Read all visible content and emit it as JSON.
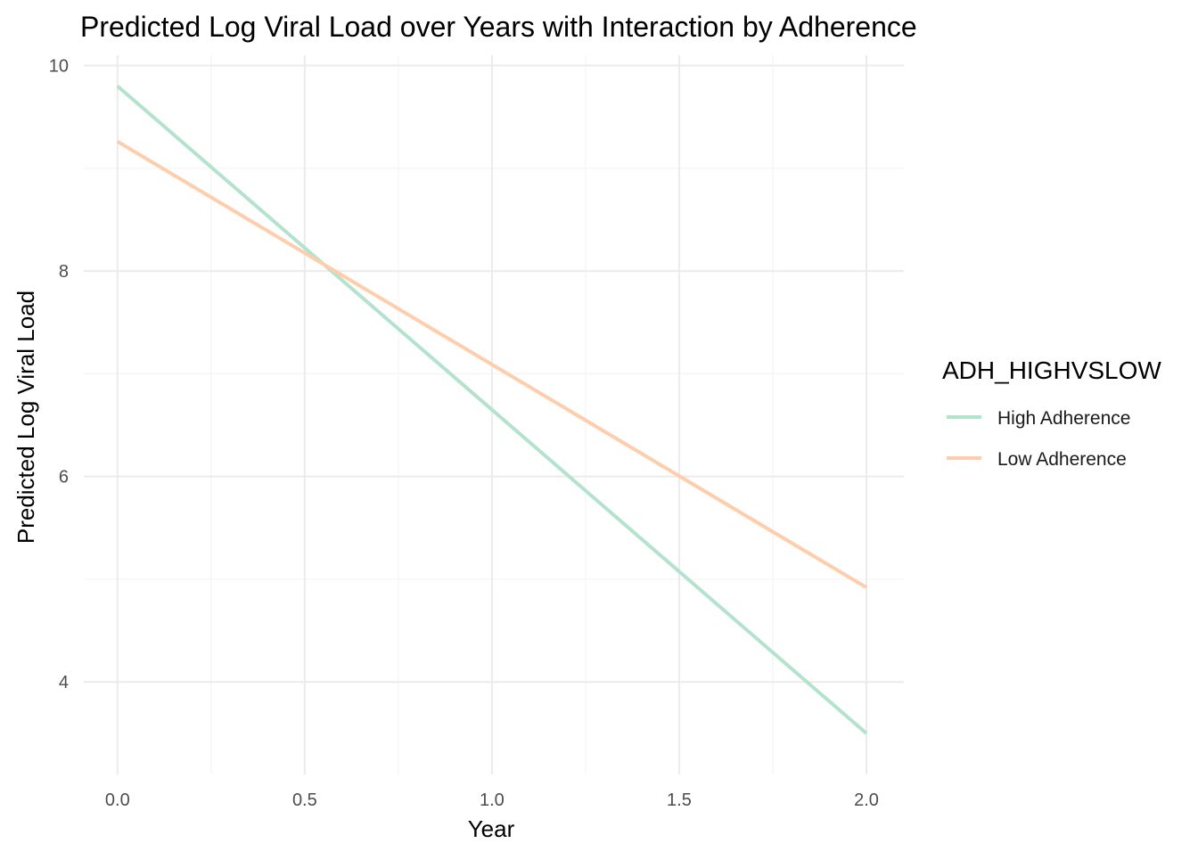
{
  "chart_data": {
    "type": "line",
    "title": "Predicted Log Viral Load over Years with Interaction by Adherence",
    "xlabel": "Year",
    "ylabel": "Predicted Log Viral Load",
    "xlim": [
      -0.09,
      2.1
    ],
    "ylim": [
      3.1,
      10.1
    ],
    "x_ticks": [
      0.0,
      0.5,
      1.0,
      1.5,
      2.0
    ],
    "x_tick_labels": [
      "0.0",
      "0.5",
      "1.0",
      "1.5",
      "2.0"
    ],
    "y_ticks": [
      4,
      6,
      8,
      10
    ],
    "y_tick_labels": [
      "4",
      "6",
      "8",
      "10"
    ],
    "grid": true,
    "legend": {
      "title": "ADH_HIGHVSLOW",
      "position": "right"
    },
    "series": [
      {
        "name": "High Adherence",
        "color": "#b3e2cd",
        "x": [
          0.0,
          2.0
        ],
        "y": [
          9.8,
          3.5
        ]
      },
      {
        "name": "Low Adherence",
        "color": "#fdcdac",
        "x": [
          0.0,
          2.0
        ],
        "y": [
          9.26,
          4.92
        ]
      }
    ]
  }
}
